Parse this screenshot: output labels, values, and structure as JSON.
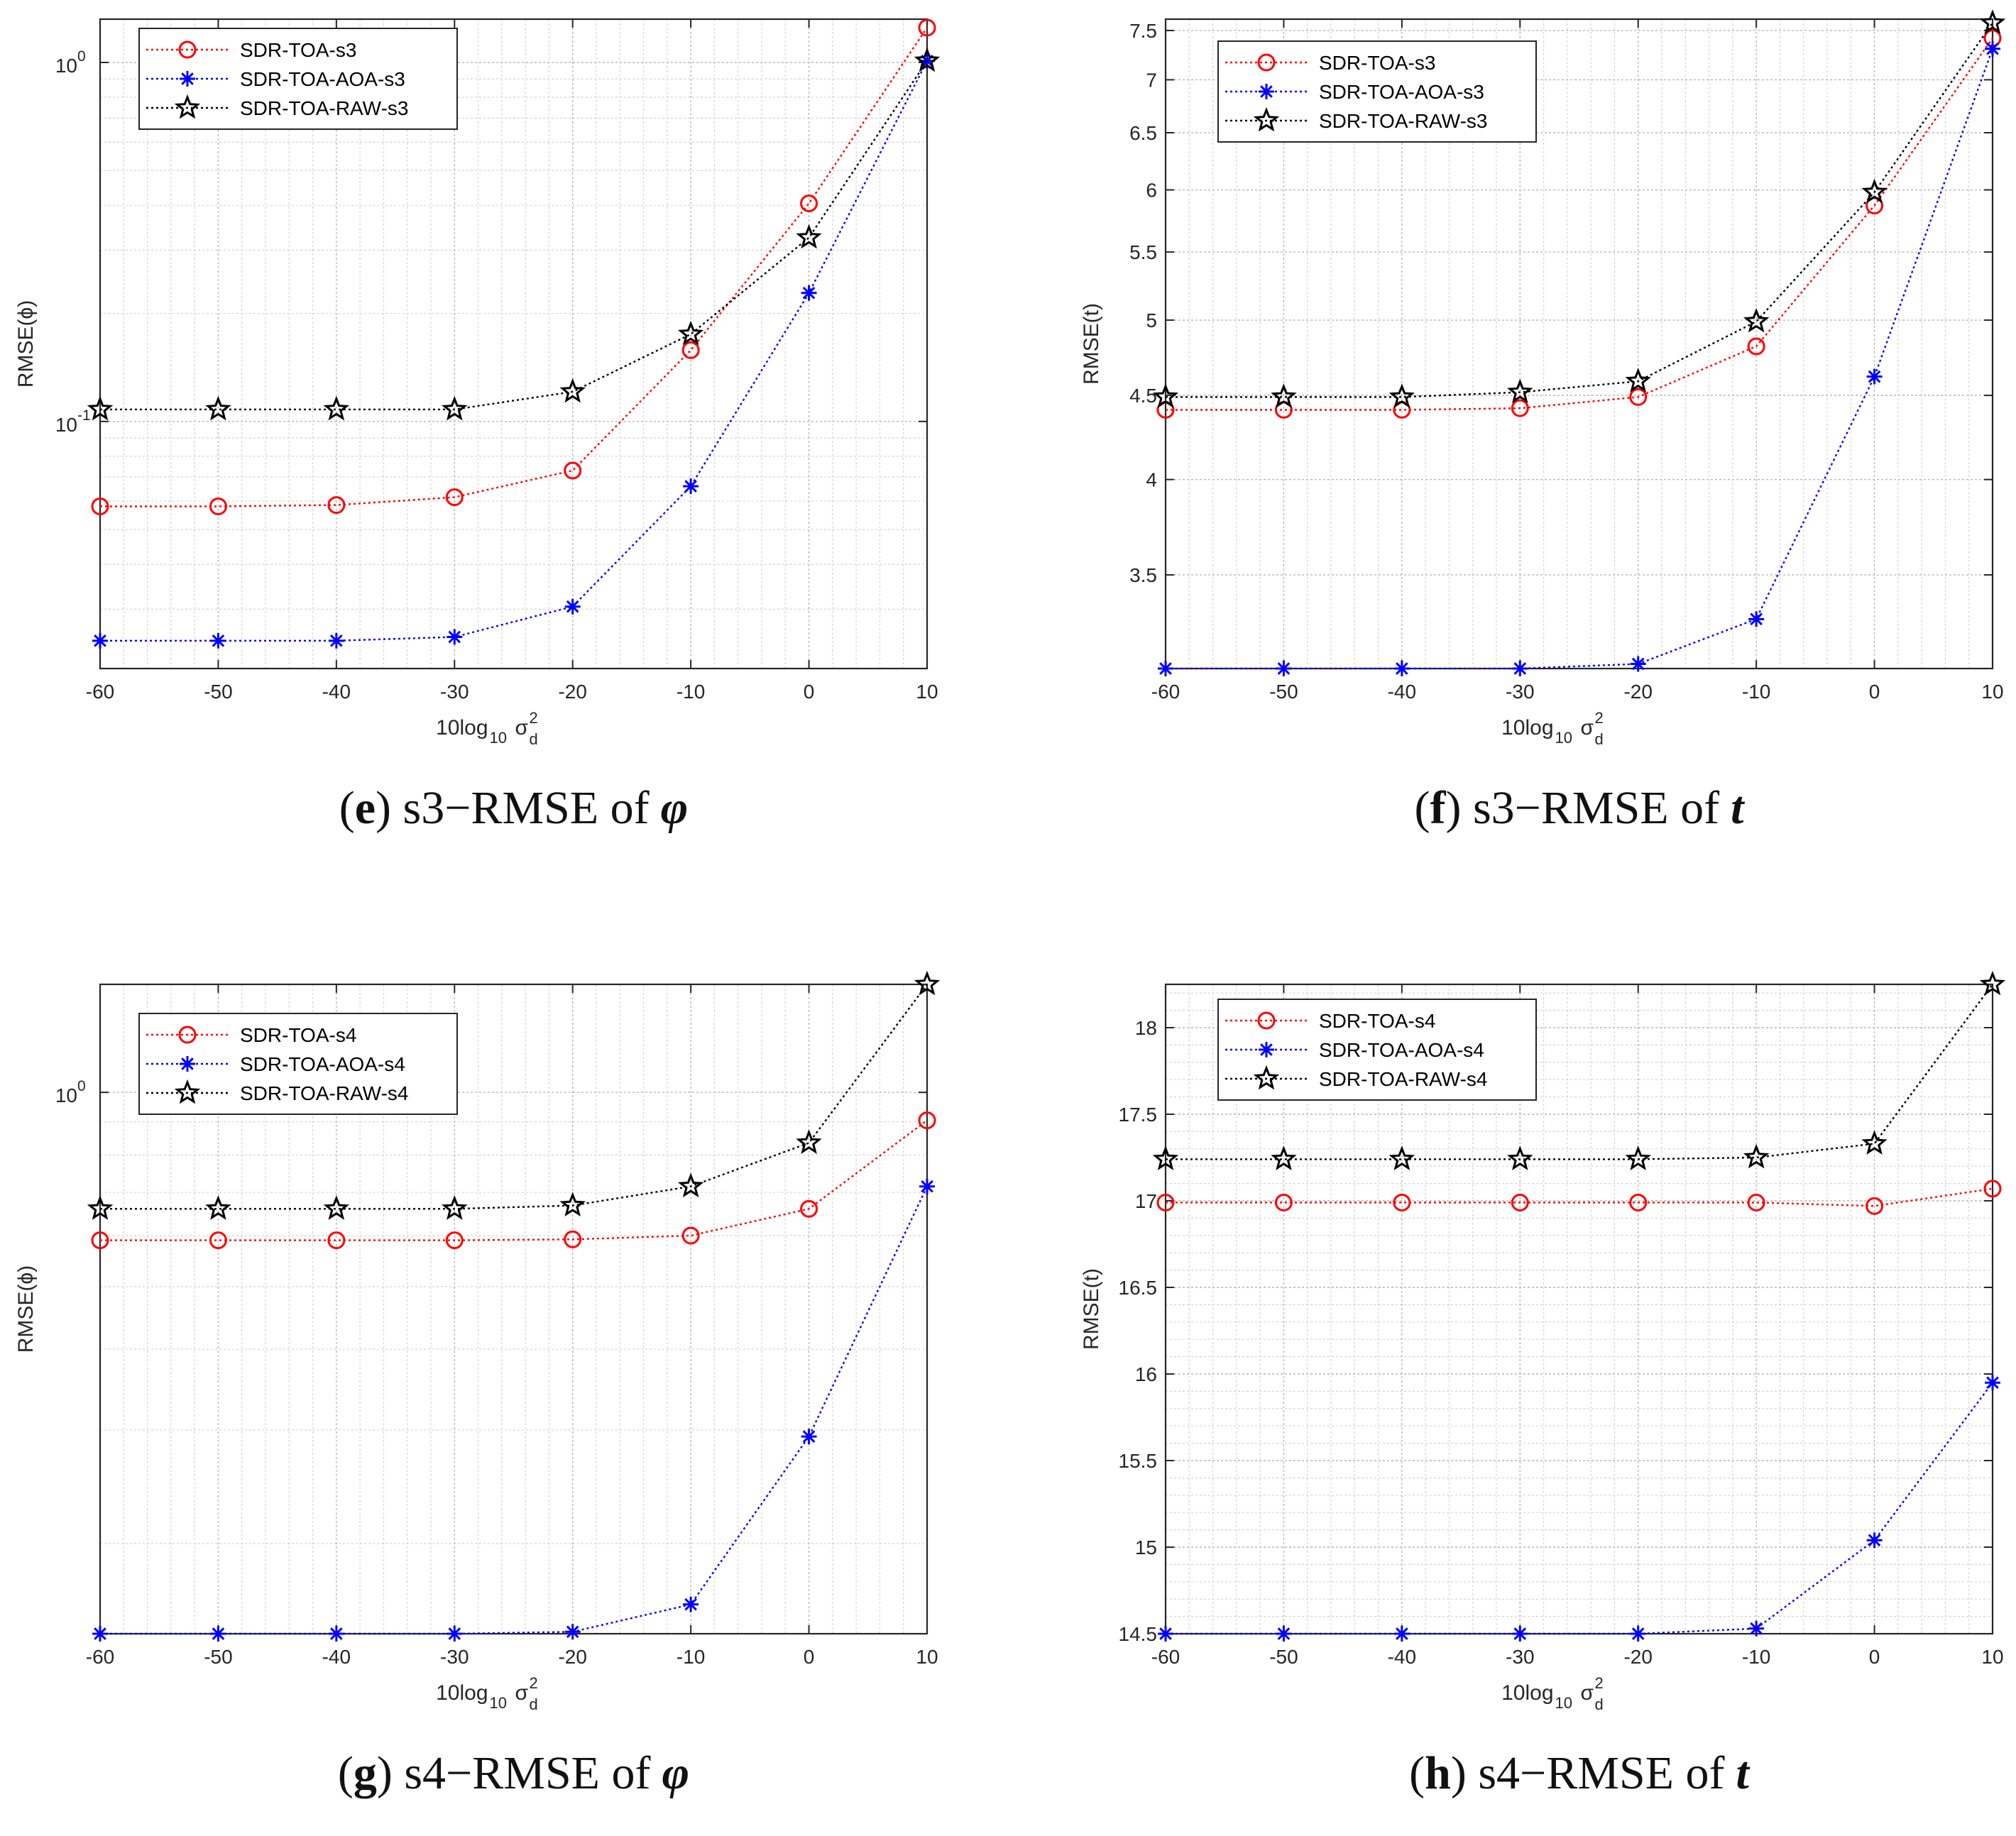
{
  "charts": [
    {
      "title": "",
      "caption_letter": "e",
      "caption_text": "s3−RMSE of",
      "caption_symbol": "φ",
      "type": "line",
      "yscale": "log",
      "ylabel": "RMSE(ϕ)",
      "xlabel_base": "10log",
      "xlabel_sub": "10",
      "xlabel_sigma": "σ",
      "xlabel_sup": "2",
      "xlabel_d": "d",
      "x": [
        -60,
        -50,
        -40,
        -30,
        -20,
        -10,
        0,
        10
      ],
      "xlim": [
        -60,
        10
      ],
      "ylim": [
        0.0205,
        1.32
      ],
      "xticks": [
        -60,
        -50,
        -40,
        -30,
        -20,
        -10,
        0,
        10
      ],
      "yticks": [
        {
          "v": 1,
          "base": "10",
          "exp": "0"
        },
        {
          "v": 0.1,
          "base": "10",
          "exp": "-1"
        }
      ],
      "legend_position": "top-left",
      "series": [
        {
          "name": "SDR-TOA-s3",
          "color": "#ff0000",
          "marker": "circle",
          "values": [
            0.058,
            0.058,
            0.0585,
            0.0615,
            0.073,
            0.158,
            0.405,
            1.25
          ]
        },
        {
          "name": "SDR-TOA-AOA-s3",
          "color": "#0000ff",
          "marker": "asterisk",
          "values": [
            0.0245,
            0.0245,
            0.0245,
            0.0251,
            0.0305,
            0.066,
            0.228,
            1.01
          ]
        },
        {
          "name": "SDR-TOA-RAW-s3",
          "color": "#000000",
          "marker": "star",
          "values": [
            0.108,
            0.108,
            0.108,
            0.108,
            0.121,
            0.175,
            0.325,
            1.01
          ]
        }
      ]
    },
    {
      "title": "",
      "caption_letter": "f",
      "caption_text": "s3−RMSE of",
      "caption_symbol": "t",
      "type": "line",
      "yscale": "log",
      "ylabel": "RMSE(t)",
      "xlabel_base": "10log",
      "xlabel_sub": "10",
      "xlabel_sigma": "σ",
      "xlabel_sup": "2",
      "xlabel_d": "d",
      "x": [
        -60,
        -50,
        -40,
        -30,
        -20,
        -10,
        0,
        10
      ],
      "xlim": [
        -60,
        10
      ],
      "ylim": [
        3.07,
        7.62
      ],
      "xticks": [
        -60,
        -50,
        -40,
        -30,
        -20,
        -10,
        0,
        10
      ],
      "yticks": [
        {
          "v": 3.5,
          "label": "3.5"
        },
        {
          "v": 4,
          "label": "4"
        },
        {
          "v": 4.5,
          "label": "4.5"
        },
        {
          "v": 5,
          "label": "5"
        },
        {
          "v": 5.5,
          "label": "5.5"
        },
        {
          "v": 6,
          "label": "6"
        },
        {
          "v": 6.5,
          "label": "6.5"
        },
        {
          "v": 7,
          "label": "7"
        },
        {
          "v": 7.5,
          "label": "7.5"
        }
      ],
      "legend_position": "top-left",
      "series": [
        {
          "name": "SDR-TOA-s3",
          "color": "#ff0000",
          "marker": "circle",
          "values": [
            4.41,
            4.41,
            4.41,
            4.42,
            4.49,
            4.82,
            5.87,
            7.42
          ]
        },
        {
          "name": "SDR-TOA-AOA-s3",
          "color": "#0000ff",
          "marker": "asterisk",
          "values": [
            3.07,
            3.07,
            3.07,
            3.07,
            3.09,
            3.29,
            4.62,
            7.31
          ]
        },
        {
          "name": "SDR-TOA-RAW-s3",
          "color": "#000000",
          "marker": "star",
          "values": [
            4.49,
            4.49,
            4.49,
            4.52,
            4.59,
            4.99,
            5.98,
            7.58
          ]
        }
      ]
    },
    {
      "title": "",
      "caption_letter": "g",
      "caption_text": "s4−RMSE of",
      "caption_symbol": "φ",
      "type": "line",
      "yscale": "log",
      "ylabel": "RMSE(ϕ)",
      "xlabel_base": "10log",
      "xlabel_sub": "10",
      "xlabel_sigma": "σ",
      "xlabel_sup": "2",
      "xlabel_d": "d",
      "x": [
        -60,
        -50,
        -40,
        -30,
        -20,
        -10,
        0,
        10
      ],
      "xlim": [
        -60,
        10
      ],
      "ylim": [
        0.145,
        1.47
      ],
      "xticks": [
        -60,
        -50,
        -40,
        -30,
        -20,
        -10,
        0,
        10
      ],
      "yticks": [
        {
          "v": 1,
          "base": "10",
          "exp": "0"
        }
      ],
      "legend_position": "top-left",
      "series": [
        {
          "name": "SDR-TOA-s4",
          "color": "#ff0000",
          "marker": "circle",
          "values": [
            0.59,
            0.59,
            0.59,
            0.59,
            0.592,
            0.6,
            0.66,
            0.905
          ]
        },
        {
          "name": "SDR-TOA-AOA-s4",
          "color": "#0000ff",
          "marker": "asterisk",
          "values": [
            0.145,
            0.145,
            0.145,
            0.145,
            0.146,
            0.161,
            0.293,
            0.715
          ]
        },
        {
          "name": "SDR-TOA-RAW-s4",
          "color": "#000000",
          "marker": "star",
          "values": [
            0.66,
            0.66,
            0.66,
            0.66,
            0.668,
            0.715,
            0.835,
            1.47
          ]
        }
      ]
    },
    {
      "title": "",
      "caption_letter": "h",
      "caption_text": "s4−RMSE of",
      "caption_symbol": "t",
      "type": "line",
      "yscale": "linear",
      "ylabel": "RMSE(t)",
      "xlabel_base": "10log",
      "xlabel_sub": "10",
      "xlabel_sigma": "σ",
      "xlabel_sup": "2",
      "xlabel_d": "d",
      "x": [
        -60,
        -50,
        -40,
        -30,
        -20,
        -10,
        0,
        10
      ],
      "xlim": [
        -60,
        10
      ],
      "ylim": [
        14.5,
        18.25
      ],
      "xticks": [
        -60,
        -50,
        -40,
        -30,
        -20,
        -10,
        0,
        10
      ],
      "yticks": [
        {
          "v": 14.5,
          "label": "14.5"
        },
        {
          "v": 15,
          "label": "15"
        },
        {
          "v": 15.5,
          "label": "15.5"
        },
        {
          "v": 16,
          "label": "16"
        },
        {
          "v": 16.5,
          "label": "16.5"
        },
        {
          "v": 17,
          "label": "17"
        },
        {
          "v": 17.5,
          "label": "17.5"
        },
        {
          "v": 18,
          "label": "18"
        }
      ],
      "legend_position": "top-left",
      "series": [
        {
          "name": "SDR-TOA-s4",
          "color": "#ff0000",
          "marker": "circle",
          "values": [
            16.99,
            16.99,
            16.99,
            16.99,
            16.99,
            16.99,
            16.97,
            17.07
          ]
        },
        {
          "name": "SDR-TOA-AOA-s4",
          "color": "#0000ff",
          "marker": "asterisk",
          "values": [
            14.5,
            14.5,
            14.5,
            14.5,
            14.5,
            14.53,
            15.04,
            15.95
          ]
        },
        {
          "name": "SDR-TOA-RAW-s4",
          "color": "#000000",
          "marker": "star",
          "values": [
            17.24,
            17.24,
            17.24,
            17.24,
            17.24,
            17.25,
            17.33,
            18.25
          ]
        }
      ]
    }
  ]
}
